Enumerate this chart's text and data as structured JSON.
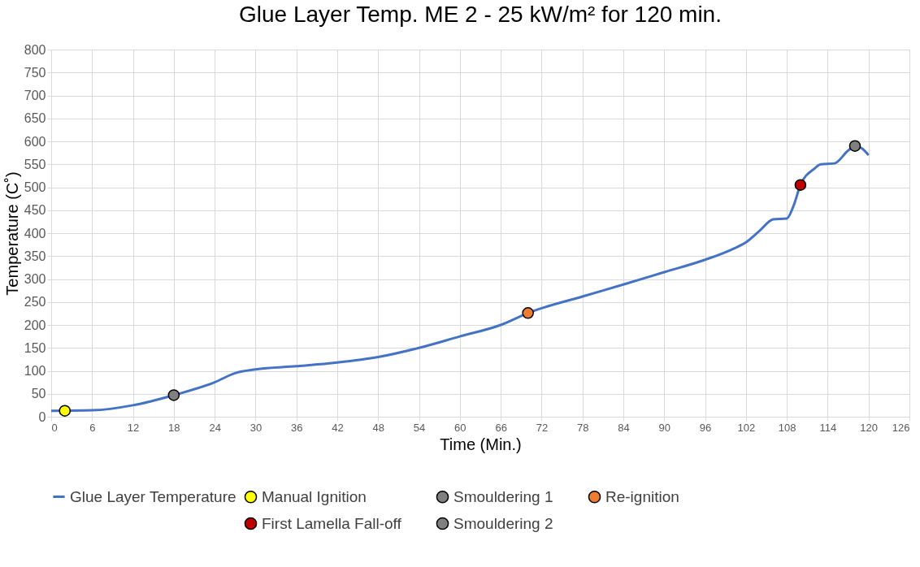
{
  "chart_data": {
    "type": "line",
    "title": "Glue Layer Temp. ME 2 - 25 kW/m² for 120 min.",
    "xlabel": "Time (Min.)",
    "ylabel": "Temperature (C˚)",
    "xlim": [
      0,
      126
    ],
    "xticks": [
      0,
      6,
      12,
      18,
      24,
      30,
      36,
      42,
      48,
      54,
      60,
      66,
      72,
      78,
      84,
      90,
      96,
      102,
      108,
      114,
      120,
      126
    ],
    "ylim": [
      0,
      800
    ],
    "yticks": [
      0,
      50,
      100,
      150,
      200,
      250,
      300,
      350,
      400,
      450,
      500,
      550,
      600,
      650,
      700,
      750,
      800
    ],
    "grid": true,
    "legend": "bottom",
    "series": [
      {
        "name": "Glue Layer Temperature",
        "type": "line",
        "color": "#4472c4",
        "marker": "none",
        "x": [
          0,
          6,
          12,
          18,
          24,
          27,
          30,
          36,
          42,
          48,
          54,
          60,
          66,
          70,
          78,
          84,
          90,
          96,
          100,
          102,
          104,
          106,
          108,
          109,
          110,
          112,
          113,
          115,
          117,
          118,
          119,
          120
        ],
        "values": [
          13,
          14,
          25,
          47,
          75,
          95,
          103,
          110,
          118,
          130,
          150,
          175,
          200,
          226,
          262,
          288,
          315,
          342,
          365,
          380,
          405,
          430,
          432,
          460,
          505,
          540,
          550,
          552,
          580,
          590,
          585,
          570
        ]
      },
      {
        "name": "Manual Ignition",
        "type": "scatter",
        "color": "#ffff00",
        "marker": "circle",
        "x": [
          2
        ],
        "values": [
          13
        ]
      },
      {
        "name": "Smouldering 1",
        "type": "scatter",
        "color": "#808080",
        "marker": "circle",
        "x": [
          18
        ],
        "values": [
          47
        ]
      },
      {
        "name": "Re-ignition",
        "type": "scatter",
        "color": "#ed7d31",
        "marker": "circle",
        "x": [
          70
        ],
        "values": [
          226
        ]
      },
      {
        "name": "First Lamella Fall-off",
        "type": "scatter",
        "color": "#c00000",
        "marker": "circle",
        "x": [
          110
        ],
        "values": [
          505
        ]
      },
      {
        "name": "Smouldering 2",
        "type": "scatter",
        "color": "#808080",
        "marker": "circle",
        "x": [
          118
        ],
        "values": [
          590
        ]
      }
    ]
  }
}
